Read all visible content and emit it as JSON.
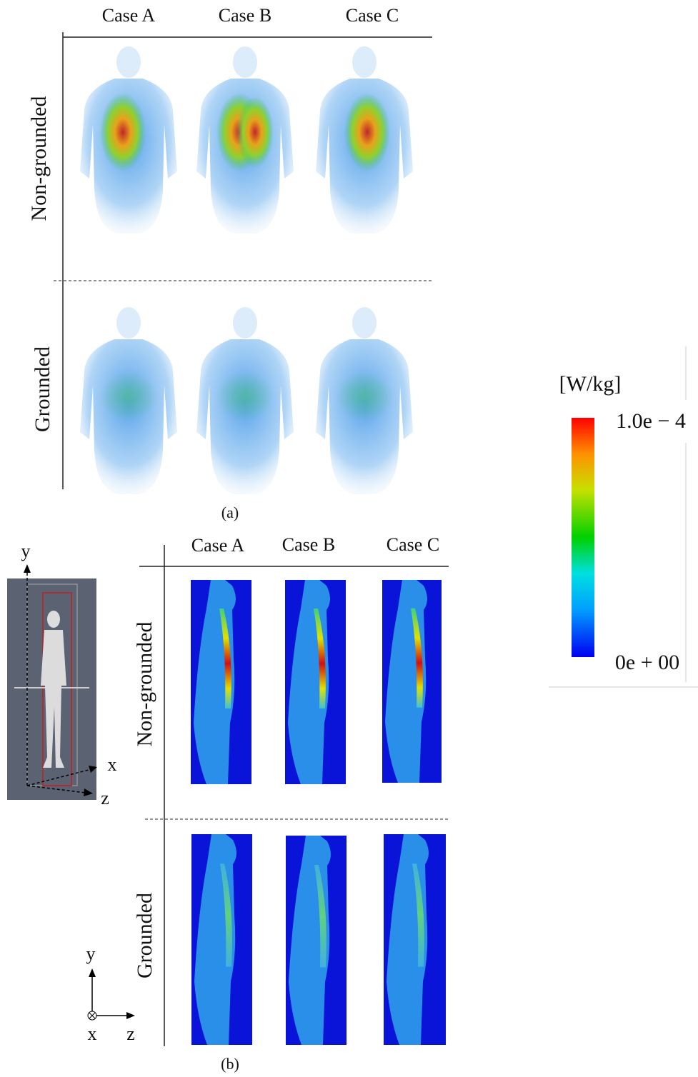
{
  "panel_a": {
    "columns": [
      "Case A",
      "Case B",
      "Case C"
    ],
    "rows": [
      "Non-grounded",
      "Grounded"
    ],
    "caption": "(a)"
  },
  "panel_b": {
    "columns": [
      "Case A",
      "Case B",
      "Case C"
    ],
    "rows": [
      "Non-grounded",
      "Grounded"
    ],
    "caption": "(b)",
    "model_axes": [
      "y",
      "x",
      "z"
    ],
    "view_axes": [
      "y",
      "x",
      "z"
    ]
  },
  "colorbar": {
    "unit": "[W/kg]",
    "max_label": "1.0e − 4",
    "min_label": "0e + 00"
  }
}
